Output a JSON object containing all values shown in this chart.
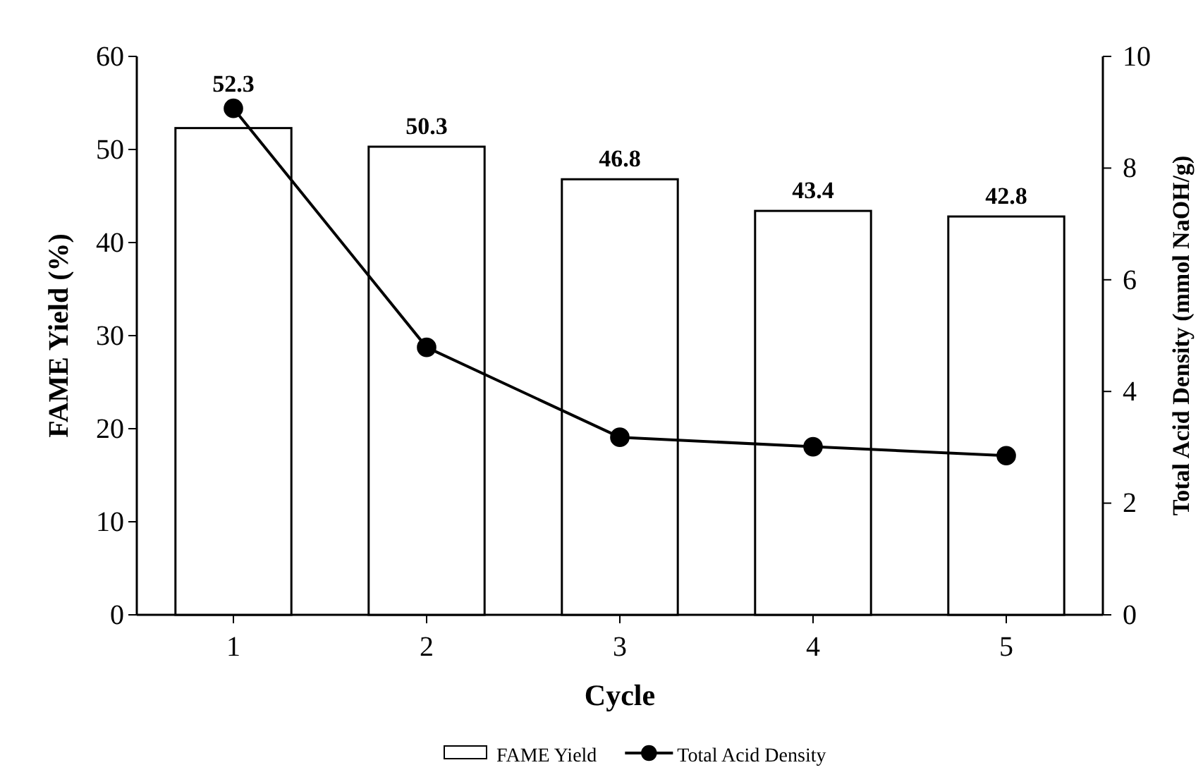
{
  "chart_data": {
    "type": "bar",
    "xlabel": "Cycle",
    "ylabel": "FAME Yield (%)",
    "y2label": "Total Acid Density (mmol NaOH/g)",
    "categories": [
      "1",
      "2",
      "3",
      "4",
      "5"
    ],
    "series": [
      {
        "name": "FAME Yield",
        "color": "#ffffff",
        "values": [
          52.3,
          50.3,
          46.8,
          43.4,
          42.8
        ],
        "data_labels": true
      },
      {
        "name": "Total Acid Density",
        "type": "line",
        "axis": "y2",
        "color": "#000000",
        "marker": "circle",
        "values": [
          9.07,
          4.79,
          3.18,
          3.01,
          2.85
        ]
      }
    ],
    "ylim": [
      0,
      60
    ],
    "yticks": [
      0,
      10,
      20,
      30,
      40,
      50,
      60
    ],
    "y2lim": [
      0,
      10
    ],
    "y2ticks": [
      0,
      2,
      4,
      6,
      8,
      10
    ],
    "legend": "bottom",
    "grid": false
  }
}
